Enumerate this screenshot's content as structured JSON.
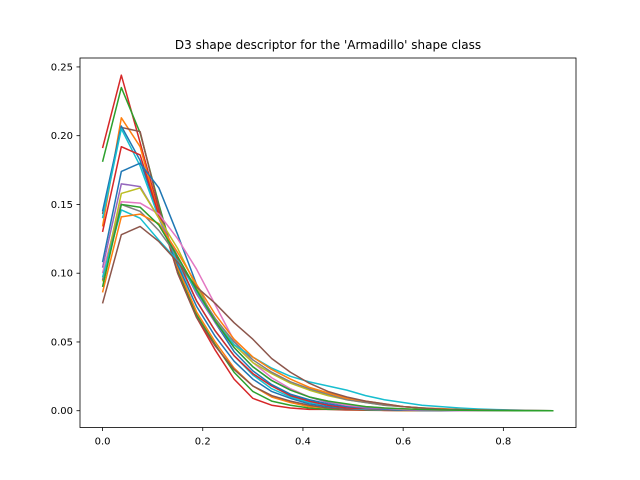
{
  "chart_data": {
    "type": "line",
    "title": "D3 shape descriptor for the 'Armadillo' shape class",
    "xlabel": "",
    "ylabel": "",
    "xlim": [
      -0.045,
      0.945
    ],
    "ylim": [
      -0.0122,
      0.2565
    ],
    "xticks": [
      0.0,
      0.2,
      0.4,
      0.6,
      0.8
    ],
    "xtick_labels": [
      "0.0",
      "0.2",
      "0.4",
      "0.6",
      "0.8"
    ],
    "yticks": [
      0.0,
      0.05,
      0.1,
      0.15,
      0.2,
      0.25
    ],
    "ytick_labels": [
      "0.00",
      "0.05",
      "0.10",
      "0.15",
      "0.20",
      "0.25"
    ],
    "grid": false,
    "x": [
      0.0,
      0.0375,
      0.075,
      0.1125,
      0.15,
      0.1875,
      0.225,
      0.2625,
      0.3,
      0.3375,
      0.375,
      0.4125,
      0.45,
      0.4875,
      0.525,
      0.5625,
      0.6,
      0.6375,
      0.675,
      0.7125,
      0.75,
      0.7875,
      0.825,
      0.8625,
      0.9
    ],
    "series": [
      {
        "color": "#d62728",
        "values": [
          0.191,
          0.244,
          0.195,
          0.145,
          0.1,
          0.068,
          0.044,
          0.023,
          0.009,
          0.004,
          0.002,
          0.001,
          0.001,
          0.0005,
          0.0003,
          0.0002,
          0.0001,
          0.0001,
          0.0001,
          0,
          0,
          0,
          0,
          0,
          0
        ]
      },
      {
        "color": "#2ca02c",
        "values": [
          0.181,
          0.235,
          0.202,
          0.15,
          0.102,
          0.07,
          0.048,
          0.028,
          0.014,
          0.007,
          0.004,
          0.002,
          0.001,
          0.001,
          0.0005,
          0.0003,
          0.0002,
          0.0001,
          0.0001,
          0,
          0,
          0,
          0,
          0,
          0
        ]
      },
      {
        "color": "#ff7f0e",
        "values": [
          0.134,
          0.213,
          0.192,
          0.142,
          0.104,
          0.072,
          0.05,
          0.031,
          0.018,
          0.01,
          0.006,
          0.003,
          0.002,
          0.001,
          0.0007,
          0.0004,
          0.0002,
          0.0001,
          0.0001,
          0,
          0,
          0,
          0,
          0,
          0
        ]
      },
      {
        "color": "#8c564b",
        "values": [
          0.143,
          0.206,
          0.203,
          0.148,
          0.1,
          0.068,
          0.047,
          0.03,
          0.018,
          0.011,
          0.007,
          0.004,
          0.002,
          0.001,
          0.0008,
          0.0005,
          0.0003,
          0.0002,
          0.0001,
          0,
          0,
          0,
          0,
          0,
          0
        ]
      },
      {
        "color": "#1f77b4",
        "values": [
          0.145,
          0.207,
          0.182,
          0.142,
          0.106,
          0.076,
          0.054,
          0.036,
          0.023,
          0.014,
          0.009,
          0.005,
          0.003,
          0.002,
          0.001,
          0.0007,
          0.0004,
          0.0002,
          0.0001,
          0,
          0,
          0,
          0,
          0,
          0
        ]
      },
      {
        "color": "#17becf",
        "values": [
          0.14,
          0.205,
          0.178,
          0.14,
          0.108,
          0.08,
          0.058,
          0.04,
          0.026,
          0.016,
          0.01,
          0.006,
          0.004,
          0.002,
          0.001,
          0.0008,
          0.0005,
          0.0003,
          0.0001,
          0,
          0,
          0,
          0,
          0,
          0
        ]
      },
      {
        "color": "#d62728",
        "values": [
          0.13,
          0.192,
          0.186,
          0.142,
          0.11,
          0.08,
          0.058,
          0.04,
          0.027,
          0.018,
          0.011,
          0.007,
          0.004,
          0.002,
          0.0015,
          0.0009,
          0.0005,
          0.0003,
          0.0001,
          0,
          0,
          0,
          0,
          0,
          0
        ]
      },
      {
        "color": "#1f77b4",
        "values": [
          0.108,
          0.174,
          0.18,
          0.162,
          0.128,
          0.092,
          0.064,
          0.043,
          0.029,
          0.019,
          0.012,
          0.008,
          0.005,
          0.003,
          0.002,
          0.001,
          0.0006,
          0.0003,
          0.0002,
          0,
          0,
          0,
          0,
          0,
          0
        ]
      },
      {
        "color": "#9467bd",
        "values": [
          0.104,
          0.165,
          0.163,
          0.14,
          0.112,
          0.085,
          0.064,
          0.046,
          0.032,
          0.022,
          0.015,
          0.01,
          0.006,
          0.004,
          0.002,
          0.0015,
          0.0009,
          0.0005,
          0.0003,
          0.0001,
          0,
          0,
          0,
          0,
          0
        ]
      },
      {
        "color": "#e377c2",
        "values": [
          0.1,
          0.152,
          0.151,
          0.143,
          0.125,
          0.103,
          0.077,
          0.051,
          0.035,
          0.024,
          0.016,
          0.01,
          0.007,
          0.004,
          0.003,
          0.002,
          0.001,
          0.0006,
          0.0003,
          0.0001,
          0,
          0,
          0,
          0,
          0
        ]
      },
      {
        "color": "#bcbd22",
        "values": [
          0.094,
          0.158,
          0.162,
          0.14,
          0.118,
          0.09,
          0.066,
          0.048,
          0.035,
          0.027,
          0.02,
          0.015,
          0.011,
          0.008,
          0.006,
          0.004,
          0.003,
          0.002,
          0.0012,
          0.0008,
          0.0005,
          0.0003,
          0.0002,
          0.0001,
          0
        ]
      },
      {
        "color": "#7f7f7f",
        "values": [
          0.095,
          0.15,
          0.145,
          0.131,
          0.112,
          0.088,
          0.067,
          0.05,
          0.037,
          0.028,
          0.021,
          0.016,
          0.012,
          0.008,
          0.006,
          0.004,
          0.003,
          0.002,
          0.0012,
          0.0008,
          0.0005,
          0.0003,
          0.0002,
          0.0001,
          0
        ]
      },
      {
        "color": "#17becf",
        "values": [
          0.097,
          0.146,
          0.14,
          0.124,
          0.109,
          0.087,
          0.065,
          0.048,
          0.039,
          0.031,
          0.025,
          0.021,
          0.018,
          0.015,
          0.011,
          0.008,
          0.006,
          0.004,
          0.003,
          0.002,
          0.0013,
          0.0008,
          0.0005,
          0.0002,
          0
        ]
      },
      {
        "color": "#ff7f0e",
        "values": [
          0.086,
          0.141,
          0.143,
          0.136,
          0.115,
          0.092,
          0.07,
          0.052,
          0.039,
          0.03,
          0.023,
          0.017,
          0.013,
          0.009,
          0.007,
          0.005,
          0.003,
          0.002,
          0.0015,
          0.0009,
          0.0005,
          0.0003,
          0.0002,
          0.0001,
          0
        ]
      },
      {
        "color": "#8c564b",
        "values": [
          0.078,
          0.128,
          0.134,
          0.123,
          0.108,
          0.09,
          0.078,
          0.064,
          0.052,
          0.038,
          0.028,
          0.02,
          0.014,
          0.01,
          0.007,
          0.005,
          0.003,
          0.002,
          0.0012,
          0.0008,
          0.0005,
          0.0003,
          0.0002,
          0.0001,
          0
        ]
      },
      {
        "color": "#2ca02c",
        "values": [
          0.09,
          0.15,
          0.148,
          0.135,
          0.112,
          0.088,
          0.065,
          0.046,
          0.032,
          0.022,
          0.015,
          0.01,
          0.007,
          0.005,
          0.003,
          0.002,
          0.0014,
          0.0009,
          0.0005,
          0.0003,
          0.0002,
          0.0001,
          0,
          0,
          0
        ]
      }
    ]
  }
}
